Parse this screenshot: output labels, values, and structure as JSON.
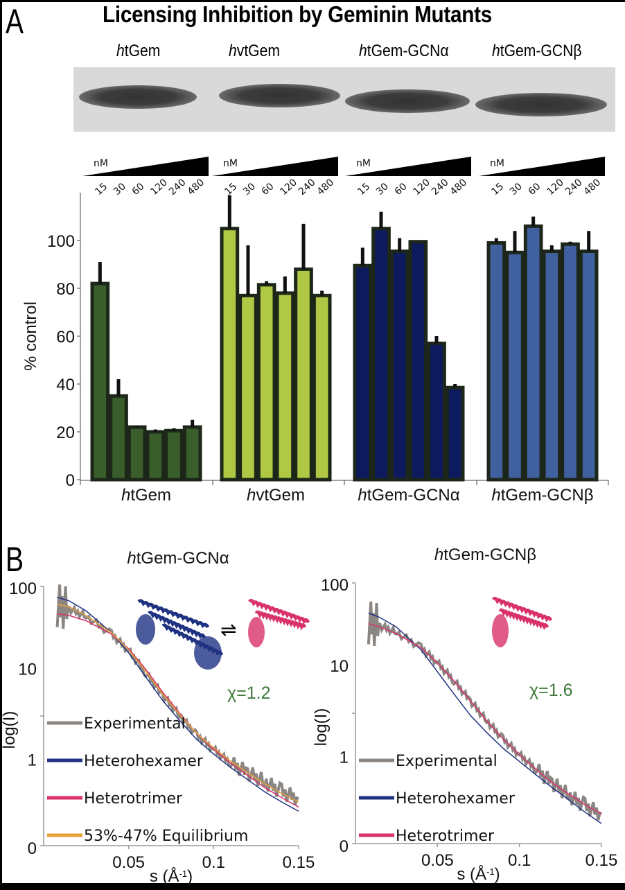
{
  "figure": {
    "panel_a_letter": "A",
    "panel_b_letter": "B",
    "title": "Licensing Inhibition by Geminin Mutants",
    "gel_lanes": [
      {
        "prefix": "h",
        "rest": "tGem"
      },
      {
        "prefix": "h",
        "rest": "vtGem"
      },
      {
        "prefix": "h",
        "rest": "tGem-GCNα"
      },
      {
        "prefix": "h",
        "rest": "tGem-GCNβ"
      }
    ],
    "conc_unit": "nM",
    "concentrations": [
      "15",
      "30",
      "60",
      "120",
      "240",
      "480"
    ]
  },
  "colors": {
    "htGem": "#3a5e2b",
    "hvtGem": "#b0c843",
    "GCNa": "#0e1a5e",
    "GCNb": "#41609f",
    "bar_outline": "#1c2619",
    "experimental": "#8c8683",
    "heterohexamer": "#1f3282",
    "heterotrimer": "#d9326a",
    "equilibrium": "#e8a03a",
    "chi_text": "#3f7a3a"
  },
  "chart_data": [
    {
      "type": "bar",
      "title": "Licensing Inhibition by Geminin Mutants",
      "xlabel": "",
      "ylabel": "% control",
      "ylim": [
        0,
        120
      ],
      "yticks": [
        0,
        20,
        40,
        60,
        80,
        100
      ],
      "categories": [
        "15",
        "30",
        "60",
        "120",
        "240",
        "480"
      ],
      "category_unit": "nM",
      "groups": [
        "htGem",
        "hvtGem",
        "htGem-GCNα",
        "htGem-GCNβ"
      ],
      "group_labels": [
        {
          "prefix": "h",
          "rest": "tGem"
        },
        {
          "prefix": "h",
          "rest": "vtGem"
        },
        {
          "prefix": "h",
          "rest": "tGem-GCNα"
        },
        {
          "prefix": "h",
          "rest": "tGem-GCNβ"
        }
      ],
      "series": [
        {
          "name": "htGem",
          "color_key": "htGem",
          "values": [
            82,
            35,
            22,
            20,
            20.5,
            22
          ],
          "error_top": [
            91,
            42,
            22.5,
            21,
            21.5,
            25
          ]
        },
        {
          "name": "hvtGem",
          "color_key": "hvtGem",
          "values": [
            105,
            77,
            81.5,
            78,
            88,
            77
          ],
          "error_top": [
            119,
            98,
            83,
            85,
            107,
            79
          ]
        },
        {
          "name": "htGem-GCNα",
          "color_key": "GCNa",
          "values": [
            89.5,
            105,
            95.5,
            99.5,
            57,
            38.5
          ],
          "error_top": [
            97,
            112,
            101,
            99.5,
            60,
            40
          ]
        },
        {
          "name": "htGem-GCNβ",
          "color_key": "GCNb",
          "values": [
            99,
            95,
            106,
            95.5,
            98.5,
            95.5
          ],
          "error_top": [
            101,
            104,
            110,
            98,
            99.5,
            104
          ]
        }
      ]
    },
    {
      "type": "line",
      "title_prefix": "h",
      "title_rest": "tGem-GCNα",
      "xlabel": "s (Å",
      "xlabel_sup": "-1",
      "xlabel_close": ")",
      "ylabel": "log(I)",
      "xlim": [
        0,
        0.15
      ],
      "xticks": [
        "0.05",
        "0.1",
        "0.15"
      ],
      "yticks": [
        "100",
        "10",
        "1",
        "0"
      ],
      "annotation": "χ=1.2",
      "legend": [
        "Experimental",
        "Heterohexamer",
        "Heterotrimer",
        "53%-47% Equilibrium"
      ],
      "legend_position": "bottom-left",
      "series": [
        {
          "name": "Experimental",
          "color_key": "experimental",
          "x": [
            0.008,
            0.015,
            0.025,
            0.04,
            0.05,
            0.06,
            0.07,
            0.08,
            0.09,
            0.1,
            0.11,
            0.12,
            0.13,
            0.14,
            0.15
          ],
          "y": [
            60,
            55,
            45,
            28,
            18,
            10,
            5.5,
            3.2,
            1.9,
            1.3,
            0.9,
            0.7,
            0.55,
            0.42,
            0.35
          ]
        },
        {
          "name": "Heterohexamer",
          "color_key": "heterohexamer",
          "x": [
            0.008,
            0.015,
            0.025,
            0.04,
            0.05,
            0.06,
            0.07,
            0.08,
            0.09,
            0.1,
            0.11,
            0.12,
            0.13,
            0.14,
            0.15
          ],
          "y": [
            75,
            68,
            52,
            29,
            17,
            9,
            4.8,
            2.8,
            1.7,
            1.15,
            0.8,
            0.58,
            0.42,
            0.32,
            0.25
          ]
        },
        {
          "name": "Heterotrimer",
          "color_key": "heterotrimer",
          "x": [
            0.008,
            0.015,
            0.025,
            0.04,
            0.05,
            0.06,
            0.07,
            0.08,
            0.09,
            0.1,
            0.11,
            0.12,
            0.13,
            0.14,
            0.15
          ],
          "y": [
            48,
            46,
            40,
            28,
            19,
            11,
            6,
            3.4,
            2.0,
            1.3,
            0.9,
            0.65,
            0.47,
            0.36,
            0.28
          ]
        },
        {
          "name": "53%-47% Equilibrium",
          "color_key": "equilibrium",
          "x": [
            0.008,
            0.015,
            0.025,
            0.04,
            0.05,
            0.06,
            0.07,
            0.08,
            0.09,
            0.1,
            0.11,
            0.12,
            0.13,
            0.14,
            0.15
          ],
          "y": [
            62,
            58,
            46,
            29,
            18.5,
            10.5,
            5.7,
            3.3,
            2.0,
            1.35,
            0.95,
            0.7,
            0.52,
            0.4,
            0.32
          ]
        }
      ]
    },
    {
      "type": "line",
      "title_prefix": "h",
      "title_rest": "tGem-GCNβ",
      "xlabel": "s (Å",
      "xlabel_sup": "-1",
      "xlabel_close": ")",
      "ylabel": "log(I)",
      "xlim": [
        0,
        0.15
      ],
      "xticks": [
        "0.05",
        "0.1",
        "0.15"
      ],
      "yticks": [
        "100",
        "10",
        "1",
        "0"
      ],
      "annotation": "χ=1.6",
      "legend": [
        "Experimental",
        "Heterohexamer",
        "Heterotrimer"
      ],
      "legend_position": "bottom-left",
      "series": [
        {
          "name": "Experimental",
          "color_key": "experimental",
          "x": [
            0.008,
            0.015,
            0.025,
            0.04,
            0.05,
            0.06,
            0.07,
            0.08,
            0.09,
            0.1,
            0.11,
            0.12,
            0.13,
            0.14,
            0.15
          ],
          "y": [
            35,
            32,
            27,
            18,
            12,
            7.5,
            4.4,
            2.6,
            1.6,
            1.05,
            0.72,
            0.5,
            0.36,
            0.27,
            0.22
          ]
        },
        {
          "name": "Heterohexamer",
          "color_key": "heterohexamer",
          "x": [
            0.008,
            0.015,
            0.025,
            0.04,
            0.05,
            0.06,
            0.07,
            0.08,
            0.09,
            0.1,
            0.11,
            0.12,
            0.13,
            0.14,
            0.15
          ],
          "y": [
            45,
            40,
            31,
            17,
            9.5,
            5.3,
            3.0,
            1.9,
            1.25,
            0.88,
            0.62,
            0.44,
            0.32,
            0.23,
            0.17
          ]
        },
        {
          "name": "Heterotrimer",
          "color_key": "heterotrimer",
          "x": [
            0.008,
            0.015,
            0.025,
            0.04,
            0.05,
            0.06,
            0.07,
            0.08,
            0.09,
            0.1,
            0.11,
            0.12,
            0.13,
            0.14,
            0.15
          ],
          "y": [
            34,
            31,
            26,
            18,
            12,
            7.5,
            4.4,
            2.6,
            1.6,
            1.05,
            0.72,
            0.5,
            0.37,
            0.28,
            0.22
          ]
        }
      ]
    }
  ]
}
